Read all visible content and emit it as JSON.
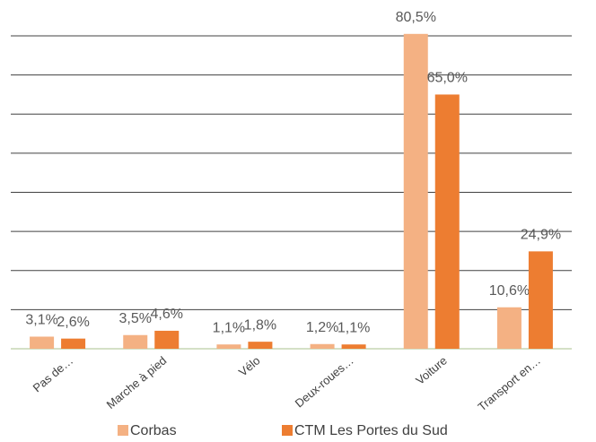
{
  "chart_data": {
    "type": "bar",
    "categories": [
      "Pas de…",
      "Marche à pied",
      "Vélo",
      "Deux-roues…",
      "Voiture",
      "Transport en…"
    ],
    "series": [
      {
        "name": "Corbas",
        "color": "#f4b183",
        "values": [
          3.1,
          3.5,
          1.1,
          1.2,
          80.5,
          10.6
        ],
        "value_labels": [
          "3,1%",
          "3,5%",
          "1,1%",
          "1,2%",
          "80,5%",
          "10,6%"
        ]
      },
      {
        "name": "CTM Les Portes du Sud",
        "color": "#ed7d31",
        "values": [
          2.6,
          4.6,
          1.8,
          1.1,
          65.0,
          24.9
        ],
        "value_labels": [
          "2,6%",
          "4,6%",
          "1,8%",
          "1,1%",
          "65,0%",
          "24,9%"
        ]
      }
    ],
    "ylim": [
      0,
      80
    ],
    "yticks": [
      0,
      10,
      20,
      30,
      40,
      50,
      60,
      70,
      80
    ],
    "grid": true,
    "legend": "bottom"
  }
}
